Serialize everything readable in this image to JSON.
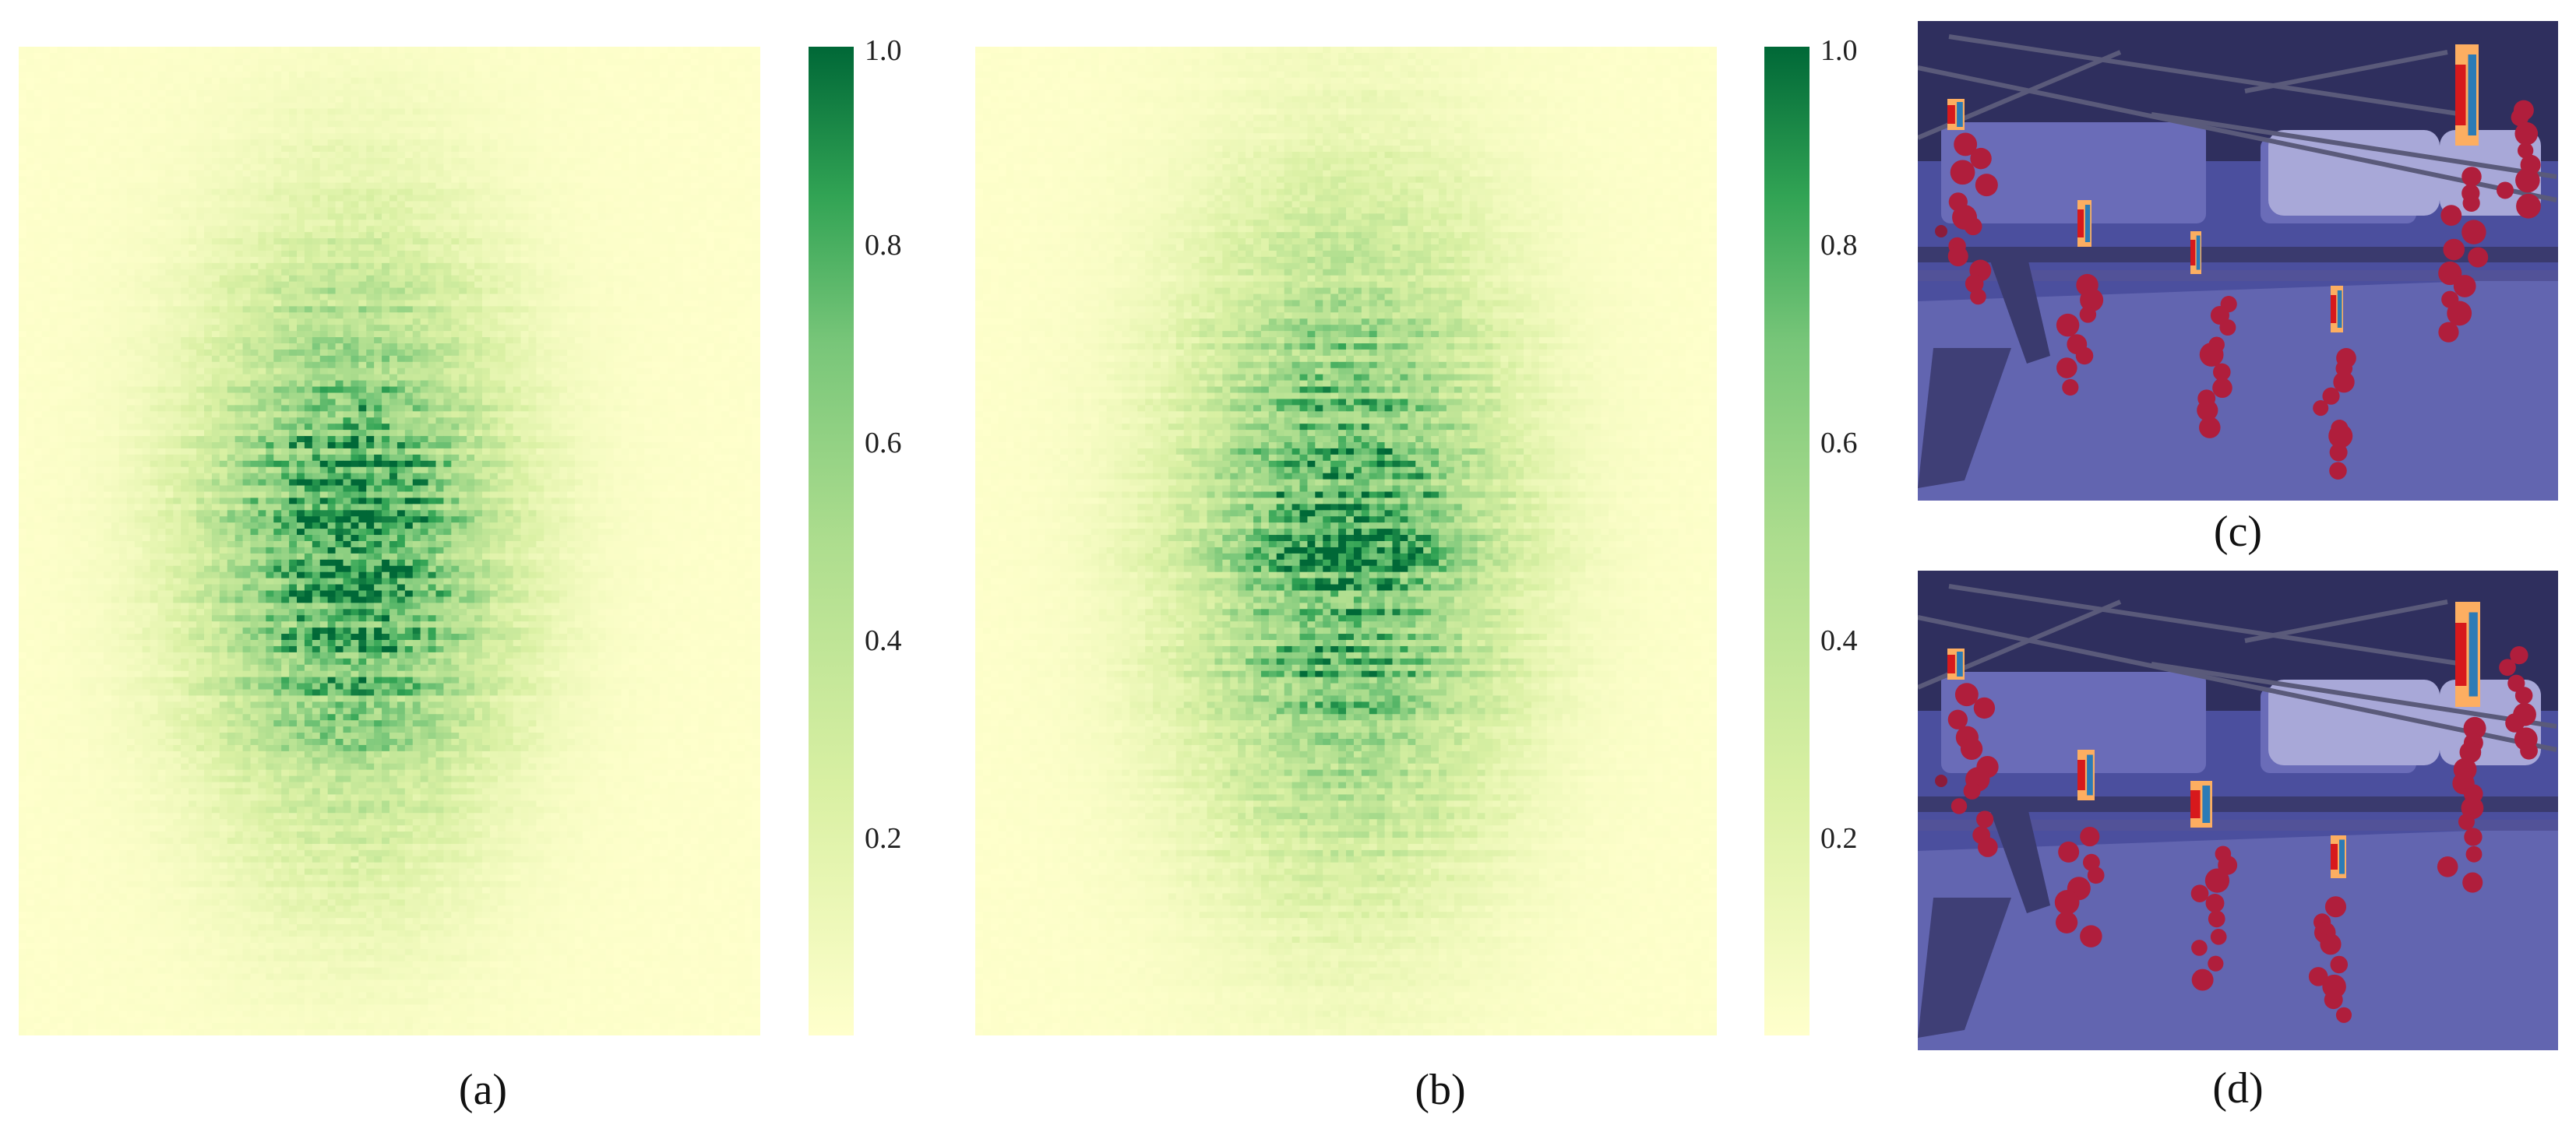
{
  "chart_data": [
    {
      "type": "heatmap",
      "caption": "(a)",
      "title": "",
      "xlabel": "",
      "ylabel": "",
      "colormap": "YlGn",
      "color_min": "#ffffcc",
      "color_max": "#006837",
      "vmin": 0,
      "vmax": 1.0,
      "colorbar_ticks": [
        "1.0",
        "0.8",
        "0.6",
        "0.4",
        "0.2"
      ],
      "hotspot": {
        "center_x": 0.45,
        "center_y": 0.5,
        "peak": 0.85,
        "spread_x": 0.14,
        "spread_y": 0.2
      }
    },
    {
      "type": "heatmap",
      "caption": "(b)",
      "title": "",
      "xlabel": "",
      "ylabel": "",
      "colormap": "YlGn",
      "color_min": "#ffffcc",
      "color_max": "#006837",
      "vmin": 0,
      "vmax": 1.0,
      "colorbar_ticks": [
        "1.0",
        "0.8",
        "0.6",
        "0.4",
        "0.2"
      ],
      "hotspot": {
        "center_x": 0.5,
        "center_y": 0.5,
        "peak": 0.8,
        "spread_x": 0.15,
        "spread_y": 0.22
      }
    }
  ],
  "images": [
    {
      "caption": "(c)",
      "description_colors": {
        "overlay": "#3b3f96",
        "heat_high": "#d7191c",
        "heat_mid": "#fdae61",
        "heat_low": "#2c7bb6"
      }
    },
    {
      "caption": "(d)",
      "description_colors": {
        "overlay": "#3b3f96",
        "heat_high": "#d7191c",
        "heat_mid": "#fdae61",
        "heat_low": "#2c7bb6"
      }
    }
  ]
}
